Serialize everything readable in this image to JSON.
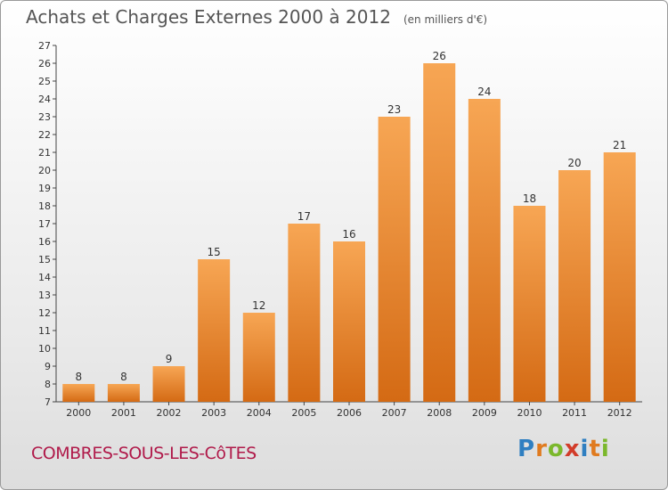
{
  "header": {
    "title": "Achats et Charges Externes 2000 à 2012",
    "unit": "(en milliers d'€)"
  },
  "footer": {
    "commune": "COMBRES-SOUS-LES-CôTES",
    "brand": "Proxiti"
  },
  "colors": {
    "bar_top": "#f7a654",
    "bar_bottom": "#d46a14",
    "commune": "#b01a4a",
    "brand_letters": [
      "#2f7fc1",
      "#e07b1f",
      "#7bb82c",
      "#d23c2a",
      "#2f7fc1",
      "#e07b1f",
      "#7bb82c"
    ]
  },
  "chart_data": {
    "type": "bar",
    "title": "Achats et Charges Externes 2000 à 2012",
    "subtitle": "(en milliers d'€)",
    "xlabel": "",
    "ylabel": "",
    "categories": [
      "2000",
      "2001",
      "2002",
      "2003",
      "2004",
      "2005",
      "2006",
      "2007",
      "2008",
      "2009",
      "2010",
      "2011",
      "2012"
    ],
    "values": [
      8,
      8,
      9,
      15,
      12,
      17,
      16,
      23,
      26,
      24,
      18,
      20,
      21
    ],
    "ylim": [
      7,
      27
    ],
    "yticks": [
      7,
      8,
      9,
      10,
      11,
      12,
      13,
      14,
      15,
      16,
      17,
      18,
      19,
      20,
      21,
      22,
      23,
      24,
      25,
      26,
      27
    ],
    "grid": false,
    "legend": "none"
  }
}
